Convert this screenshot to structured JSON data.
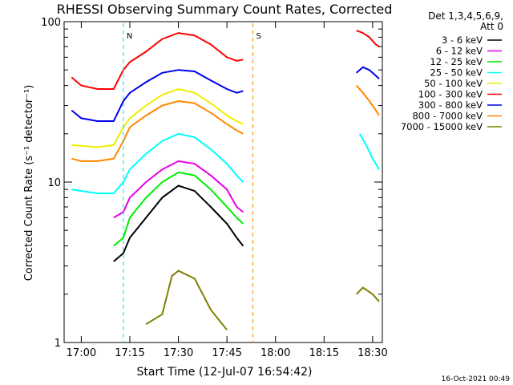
{
  "chart_data": {
    "type": "line",
    "title": "RHESSI Observing Summary Count Rates, Corrected",
    "xlabel": "Start Time (12-Jul-07 16:54:42)",
    "ylabel": "Corrected Count Rate (s⁻¹ detector⁻¹)",
    "yscale": "log",
    "ylim": [
      1,
      100
    ],
    "xlim": [
      "16:54:42",
      "18:33:00"
    ],
    "x_ticks": [
      "17:00",
      "17:15",
      "17:30",
      "17:45",
      "18:00",
      "18:15",
      "18:30"
    ],
    "y_ticks": [
      "1",
      "10",
      "100"
    ],
    "legend_header": [
      "Det 1,3,4,5,6,9,",
      "Att 0"
    ],
    "legend_position": "top-right",
    "footer": "16-Oct-2021 00:49",
    "markers": [
      {
        "label": "N",
        "x": "17:13",
        "color": "#00e5e5"
      },
      {
        "label": "S",
        "x": "17:53",
        "color": "#ff8800"
      }
    ],
    "series": [
      {
        "name": "3 - 6 keV",
        "color": "#000000",
        "points": [
          [
            "17:10",
            3.2
          ],
          [
            "17:13",
            3.6
          ],
          [
            "17:15",
            4.5
          ],
          [
            "17:20",
            6
          ],
          [
            "17:25",
            8
          ],
          [
            "17:30",
            9.5
          ],
          [
            "17:35",
            8.8
          ],
          [
            "17:40",
            7
          ],
          [
            "17:45",
            5.5
          ],
          [
            "17:48",
            4.5
          ],
          [
            "17:50",
            4
          ]
        ]
      },
      {
        "name": "6 - 12 keV",
        "color": "#e600e6",
        "points": [
          [
            "17:10",
            6
          ],
          [
            "17:13",
            6.5
          ],
          [
            "17:15",
            8
          ],
          [
            "17:20",
            10
          ],
          [
            "17:25",
            12
          ],
          [
            "17:30",
            13.5
          ],
          [
            "17:35",
            13
          ],
          [
            "17:40",
            11
          ],
          [
            "17:45",
            9
          ],
          [
            "17:48",
            7
          ],
          [
            "17:50",
            6.5
          ]
        ]
      },
      {
        "name": "12 - 25 keV",
        "color": "#00ee00",
        "points": [
          [
            "17:10",
            4
          ],
          [
            "17:13",
            4.5
          ],
          [
            "17:15",
            6
          ],
          [
            "17:20",
            8
          ],
          [
            "17:25",
            10
          ],
          [
            "17:30",
            11.5
          ],
          [
            "17:35",
            11
          ],
          [
            "17:40",
            9
          ],
          [
            "17:45",
            7
          ],
          [
            "17:48",
            6
          ],
          [
            "17:50",
            5.5
          ]
        ]
      },
      {
        "name": "25 - 50 keV",
        "color": "#00ffff",
        "points": [
          [
            "16:57",
            9
          ],
          [
            "17:05",
            8.5
          ],
          [
            "17:10",
            8.5
          ],
          [
            "17:13",
            10
          ],
          [
            "17:15",
            12
          ],
          [
            "17:20",
            15
          ],
          [
            "17:25",
            18
          ],
          [
            "17:30",
            20
          ],
          [
            "17:35",
            19
          ],
          [
            "17:40",
            16
          ],
          [
            "17:45",
            13
          ],
          [
            "17:48",
            11
          ],
          [
            "17:50",
            10
          ],
          [
            "18:26",
            20
          ],
          [
            "18:28",
            17
          ],
          [
            "18:30",
            14
          ],
          [
            "18:32",
            12
          ]
        ]
      },
      {
        "name": "50 - 100 keV",
        "color": "#eeee00",
        "points": [
          [
            "16:57",
            17
          ],
          [
            "17:05",
            16.5
          ],
          [
            "17:10",
            17
          ],
          [
            "17:13",
            22
          ],
          [
            "17:15",
            25
          ],
          [
            "17:20",
            30
          ],
          [
            "17:25",
            35
          ],
          [
            "17:30",
            38
          ],
          [
            "17:35",
            36
          ],
          [
            "17:40",
            31
          ],
          [
            "17:45",
            26
          ],
          [
            "17:48",
            24
          ],
          [
            "17:50",
            23
          ]
        ]
      },
      {
        "name": "100 - 300 keV",
        "color": "#ff0000",
        "points": [
          [
            "16:57",
            45
          ],
          [
            "17:00",
            40
          ],
          [
            "17:05",
            38
          ],
          [
            "17:10",
            38
          ],
          [
            "17:13",
            50
          ],
          [
            "17:15",
            56
          ],
          [
            "17:20",
            65
          ],
          [
            "17:25",
            78
          ],
          [
            "17:30",
            85
          ],
          [
            "17:35",
            82
          ],
          [
            "17:40",
            72
          ],
          [
            "17:45",
            60
          ],
          [
            "17:48",
            57
          ],
          [
            "17:50",
            58
          ],
          [
            "18:25",
            88
          ],
          [
            "18:27",
            85
          ],
          [
            "18:29",
            80
          ],
          [
            "18:31",
            72
          ],
          [
            "18:32",
            70
          ]
        ]
      },
      {
        "name": "300 - 800 keV",
        "color": "#0000ee",
        "points": [
          [
            "16:57",
            28
          ],
          [
            "17:00",
            25
          ],
          [
            "17:05",
            24
          ],
          [
            "17:10",
            24
          ],
          [
            "17:13",
            32
          ],
          [
            "17:15",
            36
          ],
          [
            "17:20",
            42
          ],
          [
            "17:25",
            48
          ],
          [
            "17:30",
            50
          ],
          [
            "17:35",
            49
          ],
          [
            "17:40",
            43
          ],
          [
            "17:45",
            38
          ],
          [
            "17:48",
            36
          ],
          [
            "17:50",
            37
          ],
          [
            "18:25",
            48
          ],
          [
            "18:27",
            52
          ],
          [
            "18:29",
            50
          ],
          [
            "18:31",
            46
          ],
          [
            "18:32",
            44
          ]
        ]
      },
      {
        "name": "800 - 7000 keV",
        "color": "#ff8800",
        "points": [
          [
            "16:57",
            14
          ],
          [
            "17:00",
            13.5
          ],
          [
            "17:05",
            13.5
          ],
          [
            "17:10",
            14
          ],
          [
            "17:13",
            18
          ],
          [
            "17:15",
            22
          ],
          [
            "17:20",
            26
          ],
          [
            "17:25",
            30
          ],
          [
            "17:30",
            32
          ],
          [
            "17:35",
            31
          ],
          [
            "17:40",
            27
          ],
          [
            "17:45",
            23
          ],
          [
            "17:48",
            21
          ],
          [
            "17:50",
            20
          ],
          [
            "18:25",
            40
          ],
          [
            "18:27",
            36
          ],
          [
            "18:29",
            32
          ],
          [
            "18:31",
            28
          ],
          [
            "18:32",
            26
          ]
        ]
      },
      {
        "name": "7000 - 15000 keV",
        "color": "#808000",
        "points": [
          [
            "17:20",
            1.3
          ],
          [
            "17:25",
            1.5
          ],
          [
            "17:28",
            2.6
          ],
          [
            "17:30",
            2.8
          ],
          [
            "17:35",
            2.5
          ],
          [
            "17:40",
            1.6
          ],
          [
            "17:45",
            1.2
          ],
          [
            "18:25",
            2
          ],
          [
            "18:27",
            2.2
          ],
          [
            "18:30",
            2
          ],
          [
            "18:32",
            1.8
          ]
        ]
      }
    ]
  }
}
